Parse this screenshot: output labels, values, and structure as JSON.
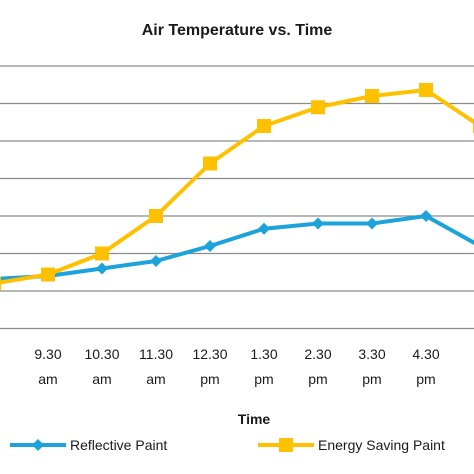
{
  "chart_data": {
    "type": "line",
    "title": "Air Temperature vs. Time",
    "xlabel": "Time",
    "ylabel": "",
    "grid": true,
    "legend_position": "bottom",
    "categories": [
      [
        "",
        ""
      ],
      [
        "9.30",
        "am"
      ],
      [
        "10.30",
        "am"
      ],
      [
        "11.30",
        "am"
      ],
      [
        "12.30",
        "pm"
      ],
      [
        "1.30",
        "pm"
      ],
      [
        "2.30",
        "pm"
      ],
      [
        "3.30",
        "pm"
      ],
      [
        "4.30",
        "pm"
      ],
      [
        "",
        ""
      ]
    ],
    "series": [
      {
        "name": "Reflective Paint",
        "color": "#1ca3dc",
        "marker": "diamond",
        "values": [
          31.6,
          32.0,
          33.0,
          34.0,
          36.0,
          38.3,
          39.0,
          39.0,
          40.0,
          36.0
        ]
      },
      {
        "name": "Energy Saving Paint",
        "color": "#ffc000",
        "marker": "square",
        "values": [
          31.0,
          32.2,
          35.0,
          40.0,
          47.0,
          52.0,
          54.5,
          56.0,
          56.8,
          52.0
        ]
      }
    ]
  }
}
